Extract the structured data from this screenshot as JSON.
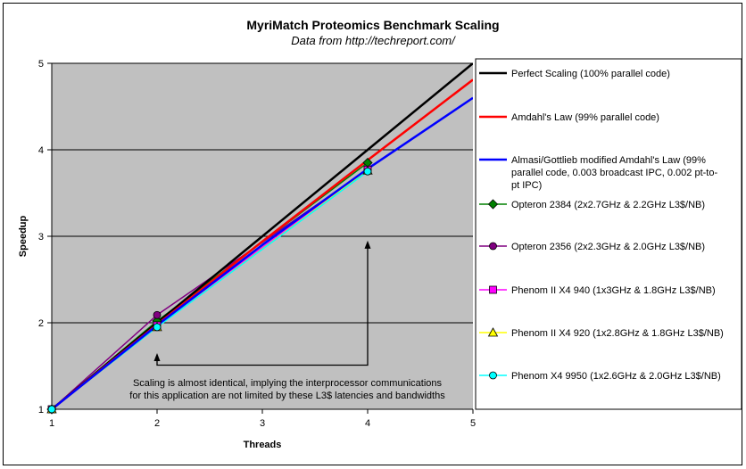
{
  "chart_data": {
    "type": "line",
    "title": "MyriMatch Proteomics Benchmark Scaling",
    "subtitle": "Data from http://techreport.com/",
    "xlabel": "Threads",
    "ylabel": "Speedup",
    "xlim": [
      1,
      5
    ],
    "ylim": [
      1,
      5
    ],
    "x_ticks": [
      "1",
      "2",
      "3",
      "4",
      "5"
    ],
    "y_ticks": [
      "1",
      "2",
      "3",
      "4",
      "5"
    ],
    "grid": "horizontal",
    "plot_background": "#c0c0c0",
    "legend_position": "right",
    "series": [
      {
        "name": "Perfect Scaling (100% parallel code)",
        "color": "#000000",
        "marker": "none",
        "x": [
          1,
          2,
          3,
          4,
          5
        ],
        "y": [
          1,
          2,
          3,
          4,
          5
        ]
      },
      {
        "name": "Amdahl's Law (99% parallel code)",
        "color": "#ff0000",
        "marker": "none",
        "x": [
          1,
          2,
          3,
          4,
          5
        ],
        "y": [
          1,
          1.98,
          2.94,
          3.88,
          4.81
        ]
      },
      {
        "name": "Almasi/Gottlieb modified Amdahl's Law (99% parallel code, 0.003 broadcast IPC, 0.002 pt-to-pt IPC)",
        "color": "#0000ff",
        "marker": "none",
        "x": [
          1,
          2,
          3,
          4,
          5
        ],
        "y": [
          1,
          1.97,
          2.9,
          3.78,
          4.6
        ]
      },
      {
        "name": "Opteron 2384 (2x2.7GHz & 2.2GHz L3$/NB)",
        "color": "#008000",
        "marker": "diamond",
        "x": [
          1,
          2,
          4
        ],
        "y": [
          1,
          2.02,
          3.85
        ]
      },
      {
        "name": "Opteron 2356 (2x2.3GHz & 2.0GHz L3$/NB)",
        "color": "#800080",
        "marker": "circle",
        "x": [
          1,
          2,
          4
        ],
        "y": [
          1,
          2.09,
          3.77
        ]
      },
      {
        "name": "Phenom II X4 940 (1x3GHz & 1.8GHz L3$/NB)",
        "color": "#ff00ff",
        "marker": "square",
        "x": [
          1,
          2,
          4
        ],
        "y": [
          1,
          1.97,
          3.77
        ]
      },
      {
        "name": "Phenom II X4 920 (1x2.8GHz & 1.8GHz L3$/NB)",
        "color": "#ffff00",
        "marker": "triangle",
        "x": [
          1,
          2,
          4
        ],
        "y": [
          1,
          1.95,
          3.76
        ]
      },
      {
        "name": "Phenom X4 9950 (1x2.6GHz & 2.0GHz L3$/NB)",
        "color": "#00ffff",
        "marker": "circle",
        "x": [
          1,
          2,
          4
        ],
        "y": [
          1,
          1.95,
          3.75
        ]
      }
    ],
    "annotation": {
      "lines": [
        "Scaling is almost identical, implying the interprocessor communications",
        "for this application are not limited by these L3$ latencies and bandwidths"
      ],
      "arrow_points": [
        {
          "x": 2,
          "y": 1.65
        },
        {
          "x": 4,
          "y": 2.95
        }
      ]
    }
  }
}
